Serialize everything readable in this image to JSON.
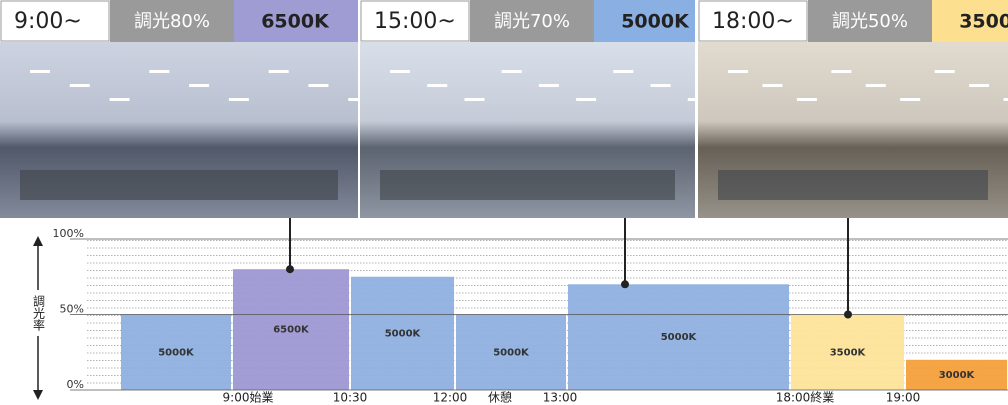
{
  "panels": [
    {
      "time": "9:00~",
      "dimming": "調光80%",
      "temp": "6500K",
      "color": "#9f9bd3",
      "text_color": "#222222"
    },
    {
      "time": "15:00~",
      "dimming": "調光70%",
      "temp": "5000K",
      "color": "#8ab0e3",
      "text_color": "#222222"
    },
    {
      "time": "18:00~",
      "dimming": "調光50%",
      "temp": "3500K",
      "color": "#fde08f",
      "text_color": "#222222"
    }
  ],
  "chart_data": {
    "type": "bar",
    "y_label": "調光率",
    "categories": [
      "5000K",
      "6500K",
      "5000K",
      "5000K",
      "5000K",
      "3500K",
      "3000K"
    ],
    "values": [
      50,
      80,
      75,
      50,
      70,
      50,
      20
    ],
    "colors": [
      "#8fb0e0",
      "#9d99d3",
      "#8fb0e0",
      "#8fb0e0",
      "#8fb0e0",
      "#fde49a",
      "#f5a03c"
    ],
    "x_labels": [
      "9:00始業",
      "10:30",
      "12:00",
      "休憩",
      "13:00",
      "18:00終業",
      "19:00"
    ],
    "ylim": [
      0,
      100
    ],
    "yticks": [
      {
        "value": 0,
        "label": "0%"
      },
      {
        "value": 50,
        "label": "50%"
      },
      {
        "value": 100,
        "label": "100%"
      }
    ],
    "grid": true
  }
}
